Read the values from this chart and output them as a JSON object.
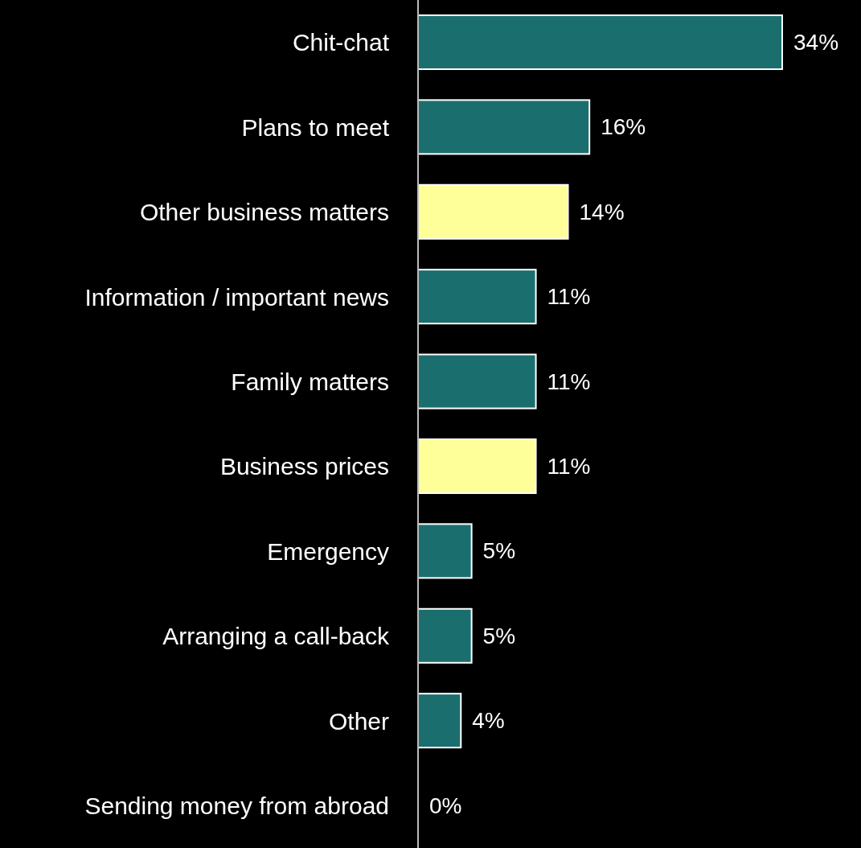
{
  "chart_data": {
    "type": "bar",
    "orientation": "horizontal",
    "categories": [
      "Chit-chat",
      "Plans to meet",
      "Other business matters",
      "Information / important news",
      "Family matters",
      "Business prices",
      "Emergency",
      "Arranging a call-back",
      "Other",
      "Sending money from abroad"
    ],
    "values": [
      34,
      16,
      14,
      11,
      11,
      11,
      5,
      5,
      4,
      0
    ],
    "colors": [
      "#1b6e6e",
      "#1b6e6e",
      "#ffff99",
      "#1b6e6e",
      "#1b6e6e",
      "#ffff99",
      "#1b6e6e",
      "#1b6e6e",
      "#1b6e6e",
      "#1b6e6e"
    ],
    "value_labels": [
      "34%",
      "16%",
      "14%",
      "11%",
      "11%",
      "11%",
      "5%",
      "5%",
      "4%",
      "0%"
    ]
  }
}
